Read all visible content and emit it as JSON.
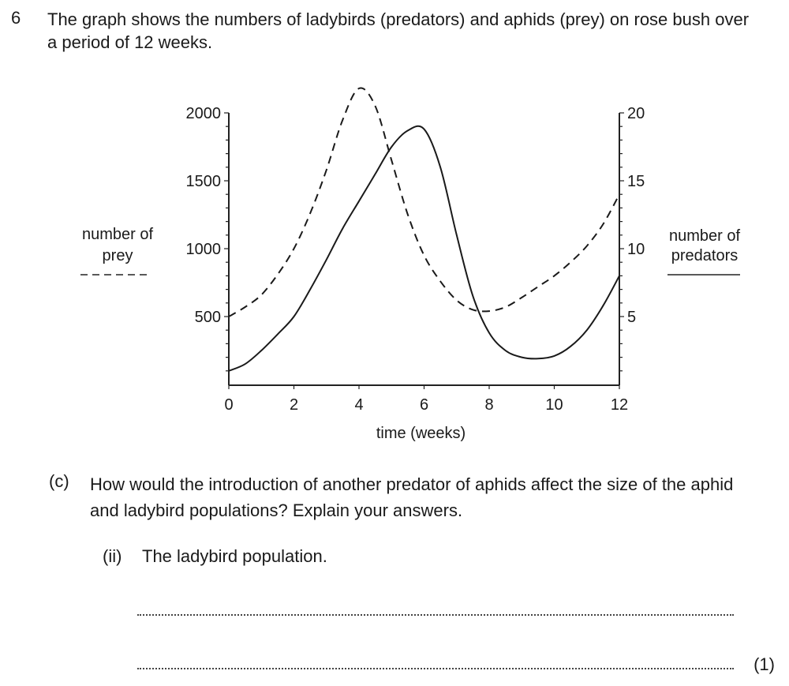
{
  "question": {
    "number": "6",
    "text": "The graph shows the numbers of ladybirds (predators) and aphids (prey) on rose bush over a period of 12 weeks."
  },
  "chart_data": {
    "type": "line",
    "title": "",
    "xlabel": "time (weeks)",
    "xlim": [
      0,
      12
    ],
    "x_ticks": [
      "0",
      "2",
      "4",
      "6",
      "8",
      "10",
      "12"
    ],
    "y_left": {
      "label_line1": "number of",
      "label_line2": "prey",
      "ylim": [
        0,
        2000
      ],
      "ticks": [
        "500",
        "1000",
        "1500",
        "2000"
      ]
    },
    "y_right": {
      "label_line1": "number of",
      "label_line2": "predators",
      "ylim": [
        0,
        20
      ],
      "ticks": [
        "5",
        "10",
        "15",
        "20"
      ]
    },
    "grid": false,
    "series": [
      {
        "name": "number of prey",
        "axis": "left",
        "style": "dashed",
        "x": [
          0,
          0.5,
          1,
          1.5,
          2,
          2.5,
          3,
          3.5,
          4,
          4.5,
          5,
          5.5,
          6,
          6.5,
          7,
          7.5,
          8,
          8.5,
          9,
          9.5,
          10,
          10.5,
          11,
          11.5,
          12
        ],
        "y": [
          500,
          570,
          660,
          810,
          1000,
          1260,
          1580,
          1950,
          2180,
          2050,
          1650,
          1250,
          950,
          760,
          620,
          550,
          540,
          570,
          640,
          720,
          800,
          900,
          1020,
          1180,
          1400
        ]
      },
      {
        "name": "number of predators",
        "axis": "right",
        "style": "solid",
        "x": [
          0,
          0.5,
          1,
          1.5,
          2,
          2.5,
          3,
          3.5,
          4,
          4.5,
          5,
          5.5,
          6,
          6.5,
          7,
          7.5,
          8,
          8.5,
          9,
          9.5,
          10,
          10.5,
          11,
          11.5,
          12
        ],
        "y": [
          1.0,
          1.5,
          2.5,
          3.7,
          5.0,
          7.0,
          9.2,
          11.5,
          13.5,
          15.5,
          17.5,
          18.7,
          18.8,
          16.0,
          11.0,
          6.5,
          3.8,
          2.5,
          2.0,
          1.9,
          2.1,
          2.8,
          4.0,
          5.8,
          8.0
        ]
      }
    ]
  },
  "part_c": {
    "label": "(c)",
    "text": "How would the introduction of another predator of aphids affect the size of the aphid and ladybird populations? Explain your answers."
  },
  "sub_ii": {
    "label": "(ii)",
    "text": "The ladybird population."
  },
  "marks": "(1)"
}
